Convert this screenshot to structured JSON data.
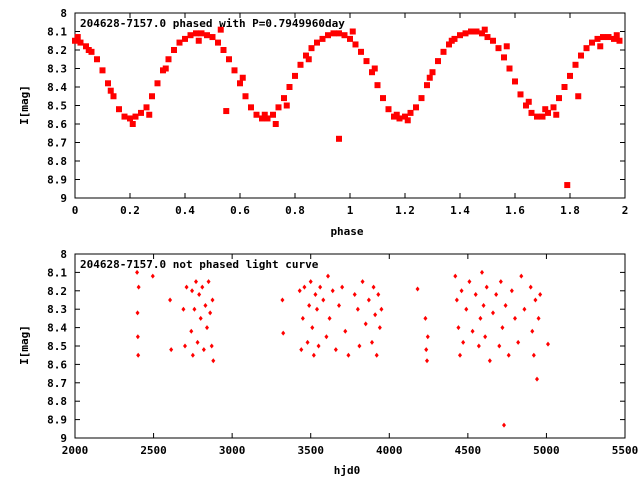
{
  "chart_data": [
    {
      "type": "scatter",
      "title": "204628-7157.0 phased with P=0.7949960day",
      "xlabel": "phase",
      "ylabel": "I[mag]",
      "xlim": [
        0,
        2
      ],
      "ylim": [
        8,
        9
      ],
      "y_inverted": true,
      "x_ticks": [
        "0",
        "0.2",
        "0.4",
        "0.6",
        "0.8",
        "1",
        "1.2",
        "1.4",
        "1.6",
        "1.8",
        "2"
      ],
      "y_ticks": [
        "8",
        "8.1",
        "8.2",
        "8.3",
        "8.4",
        "8.5",
        "8.6",
        "8.7",
        "8.8",
        "8.9",
        "9"
      ],
      "marker_color": "#ff0000",
      "series": [
        {
          "x": [
            0.0,
            0.02,
            0.04,
            0.06,
            0.08,
            0.1,
            0.12,
            0.14,
            0.16,
            0.18,
            0.2,
            0.22,
            0.24,
            0.26,
            0.28,
            0.3,
            0.32,
            0.34,
            0.36,
            0.38,
            0.4,
            0.42,
            0.44,
            0.46,
            0.48,
            0.5,
            0.52,
            0.54,
            0.56,
            0.58,
            0.6,
            0.62,
            0.64,
            0.66,
            0.68,
            0.7,
            0.72,
            0.74,
            0.76,
            0.78,
            0.8,
            0.82,
            0.84,
            0.86,
            0.88,
            0.9,
            0.92,
            0.94,
            0.96,
            0.98,
            1.0,
            1.02,
            1.04,
            1.06,
            1.08,
            1.1,
            1.12,
            1.14,
            1.16,
            1.18,
            1.2,
            1.22,
            1.24,
            1.26,
            1.28,
            1.3,
            1.32,
            1.34,
            1.36,
            1.38,
            1.4,
            1.42,
            1.44,
            1.46,
            1.48,
            1.5,
            1.52,
            1.54,
            1.56,
            1.58,
            1.6,
            1.62,
            1.64,
            1.66,
            1.68,
            1.7,
            1.72,
            1.74,
            1.76,
            1.78,
            1.8,
            1.82,
            1.84,
            1.86,
            1.88,
            1.9,
            1.92,
            1.94,
            1.96,
            1.98,
            0.01,
            0.05,
            0.13,
            0.21,
            0.27,
            0.33,
            0.45,
            0.53,
            0.55,
            0.61,
            0.69,
            0.73,
            0.77,
            0.85,
            0.96,
            1.01,
            1.09,
            1.17,
            1.21,
            1.29,
            1.37,
            1.49,
            1.57,
            1.65,
            1.71,
            1.75,
            1.79,
            1.83,
            1.91,
            1.97
          ],
          "y": [
            8.15,
            8.16,
            8.18,
            8.21,
            8.25,
            8.31,
            8.38,
            8.45,
            8.52,
            8.56,
            8.57,
            8.56,
            8.54,
            8.51,
            8.45,
            8.38,
            8.31,
            8.25,
            8.2,
            8.16,
            8.14,
            8.12,
            8.11,
            8.11,
            8.12,
            8.13,
            8.16,
            8.2,
            8.25,
            8.31,
            8.38,
            8.45,
            8.51,
            8.55,
            8.57,
            8.57,
            8.55,
            8.51,
            8.46,
            8.4,
            8.34,
            8.28,
            8.23,
            8.19,
            8.16,
            8.14,
            8.12,
            8.11,
            8.11,
            8.12,
            8.14,
            8.17,
            8.21,
            8.26,
            8.32,
            8.39,
            8.46,
            8.52,
            8.56,
            8.57,
            8.56,
            8.54,
            8.51,
            8.46,
            8.39,
            8.32,
            8.26,
            8.21,
            8.17,
            8.14,
            8.12,
            8.11,
            8.1,
            8.1,
            8.11,
            8.13,
            8.15,
            8.19,
            8.24,
            8.3,
            8.37,
            8.44,
            8.5,
            8.54,
            8.56,
            8.56,
            8.54,
            8.51,
            8.46,
            8.4,
            8.34,
            8.28,
            8.23,
            8.19,
            8.16,
            8.14,
            8.13,
            8.13,
            8.14,
            8.15,
            8.13,
            8.2,
            8.42,
            8.6,
            8.55,
            8.3,
            8.15,
            8.09,
            8.53,
            8.35,
            8.55,
            8.6,
            8.5,
            8.25,
            8.68,
            8.1,
            8.3,
            8.55,
            8.58,
            8.35,
            8.15,
            8.09,
            8.18,
            8.48,
            8.52,
            8.55,
            8.93,
            8.45,
            8.18,
            8.12
          ]
        }
      ]
    },
    {
      "type": "scatter",
      "title": "204628-7157.0 not phased light curve",
      "xlabel": "hjd0",
      "ylabel": "I[mag]",
      "xlim": [
        2000,
        5500
      ],
      "ylim": [
        8,
        9
      ],
      "y_inverted": true,
      "x_ticks": [
        "2000",
        "2500",
        "3000",
        "3500",
        "4000",
        "4500",
        "5000",
        "5500"
      ],
      "y_ticks": [
        "8",
        "8.1",
        "8.2",
        "8.3",
        "8.4",
        "8.5",
        "8.6",
        "8.7",
        "8.8",
        "8.9",
        "9"
      ],
      "marker_color": "#ff0000",
      "series": [
        {
          "x": [
            2395,
            2398,
            2400,
            2402,
            2405,
            2495,
            2605,
            2612,
            2690,
            2700,
            2710,
            2740,
            2745,
            2750,
            2760,
            2770,
            2780,
            2790,
            2800,
            2810,
            2820,
            2830,
            2840,
            2850,
            2860,
            2870,
            2875,
            2880,
            3320,
            3325,
            3430,
            3440,
            3450,
            3460,
            3480,
            3490,
            3500,
            3510,
            3520,
            3530,
            3540,
            3550,
            3560,
            3580,
            3600,
            3610,
            3620,
            3640,
            3660,
            3680,
            3700,
            3720,
            3740,
            3780,
            3800,
            3810,
            3830,
            3850,
            3870,
            3890,
            3900,
            3910,
            3920,
            3930,
            3940,
            3950,
            4180,
            4230,
            4235,
            4240,
            4245,
            4420,
            4430,
            4440,
            4450,
            4460,
            4470,
            4490,
            4510,
            4530,
            4550,
            4570,
            4580,
            4590,
            4600,
            4610,
            4620,
            4640,
            4660,
            4680,
            4700,
            4710,
            4720,
            4730,
            4740,
            4760,
            4780,
            4800,
            4820,
            4840,
            4860,
            4900,
            4910,
            4920,
            4930,
            4940,
            4950,
            4960,
            5010
          ],
          "y": [
            8.1,
            8.32,
            8.45,
            8.55,
            8.18,
            8.12,
            8.25,
            8.52,
            8.3,
            8.5,
            8.18,
            8.42,
            8.2,
            8.55,
            8.3,
            8.15,
            8.48,
            8.22,
            8.35,
            8.18,
            8.52,
            8.28,
            8.4,
            8.15,
            8.32,
            8.5,
            8.25,
            8.58,
            8.25,
            8.43,
            8.2,
            8.52,
            8.35,
            8.18,
            8.48,
            8.28,
            8.15,
            8.4,
            8.55,
            8.22,
            8.3,
            8.5,
            8.18,
            8.25,
            8.45,
            8.12,
            8.35,
            8.2,
            8.52,
            8.28,
            8.18,
            8.42,
            8.55,
            8.22,
            8.3,
            8.5,
            8.15,
            8.38,
            8.25,
            8.48,
            8.18,
            8.33,
            8.55,
            8.22,
            8.4,
            8.3,
            8.19,
            8.35,
            8.52,
            8.58,
            8.45,
            8.12,
            8.25,
            8.4,
            8.55,
            8.2,
            8.48,
            8.3,
            8.15,
            8.42,
            8.22,
            8.5,
            8.35,
            8.1,
            8.28,
            8.45,
            8.18,
            8.58,
            8.32,
            8.22,
            8.5,
            8.15,
            8.4,
            8.93,
            8.28,
            8.55,
            8.2,
            8.35,
            8.48,
            8.12,
            8.3,
            8.18,
            8.42,
            8.55,
            8.25,
            8.68,
            8.35,
            8.22,
            8.49
          ]
        }
      ]
    }
  ]
}
